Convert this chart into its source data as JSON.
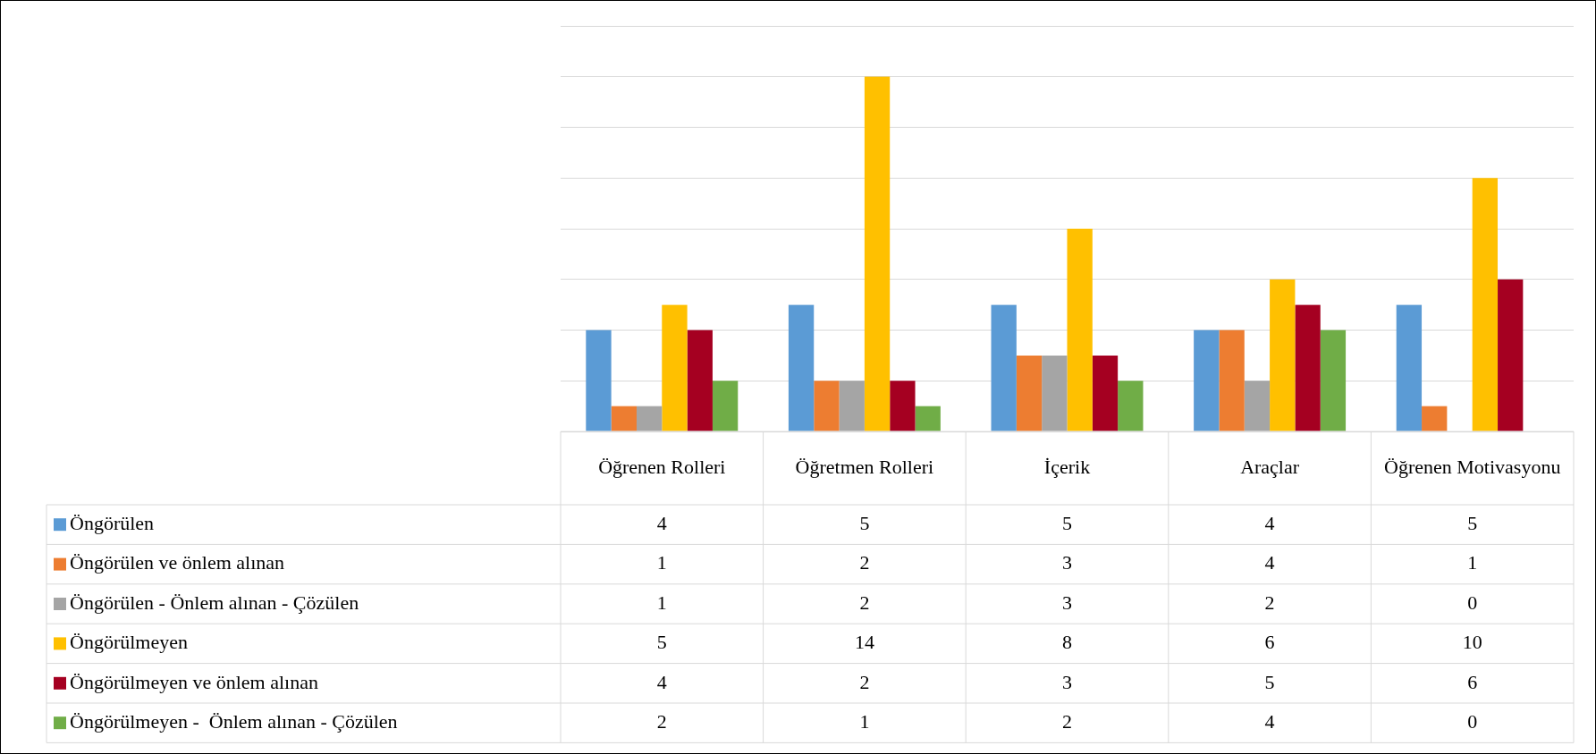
{
  "chart_data": {
    "type": "bar",
    "categories": [
      "Öğrenen Rolleri",
      "Öğretmen Rolleri",
      "İçerik",
      "Araçlar",
      "Öğrenen Motivasyonu"
    ],
    "series": [
      {
        "name": "Öngörülen",
        "color": "#5b9bd5",
        "values": [
          4,
          5,
          5,
          4,
          5
        ]
      },
      {
        "name": "Öngörülen ve önlem alınan",
        "color": "#ed7d31",
        "values": [
          1,
          2,
          3,
          4,
          1
        ]
      },
      {
        "name": "Öngörülen - Önlem alınan - Çözülen",
        "color": "#a5a5a5",
        "values": [
          1,
          2,
          3,
          2,
          0
        ]
      },
      {
        "name": "Öngörülmeyen",
        "color": "#ffc000",
        "values": [
          5,
          14,
          8,
          6,
          10
        ]
      },
      {
        "name": "Öngörülmeyen ve önlem alınan",
        "color": "#a50021",
        "values": [
          4,
          2,
          3,
          5,
          6
        ]
      },
      {
        "name": "Öngörülmeyen -  Önlem alınan - Çözülen",
        "color": "#70ad47",
        "values": [
          2,
          1,
          2,
          4,
          0
        ]
      }
    ],
    "ylim": [
      0,
      16
    ],
    "yticks": [
      {
        "value": 0,
        "label": null
      },
      {
        "value": 2,
        "label": null
      },
      {
        "value": 4,
        "label": null
      },
      {
        "value": 6,
        "label": null
      },
      {
        "value": 8,
        "label": null
      },
      {
        "value": 10,
        "label": null
      },
      {
        "value": 12,
        "label": null
      },
      {
        "value": 14,
        "label": null
      },
      {
        "value": 16,
        "label": null
      }
    ],
    "grid": "y",
    "tick_labels": false,
    "data_labels": true,
    "legend": "bottom"
  }
}
